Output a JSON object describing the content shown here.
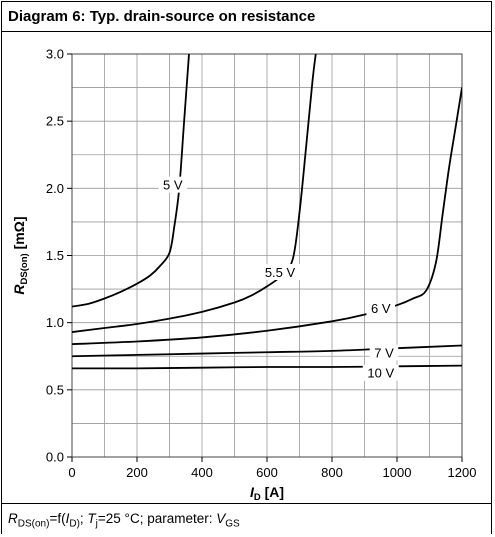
{
  "chart_data": {
    "type": "line",
    "title": "Diagram 6: Typ. drain-source on resistance",
    "xlabel": {
      "symbol": "I",
      "subscript": "D",
      "unit": "[A]"
    },
    "ylabel": {
      "symbol": "R",
      "subscript": "DS(on)",
      "unit": "[mΩ]"
    },
    "caption": "R_DS(on)=f(I_D); T_j=25 °C; parameter: V_GS",
    "xlim": [
      0,
      1200
    ],
    "ylim": [
      0.0,
      3.0
    ],
    "xticks": [
      "0",
      "200",
      "400",
      "600",
      "800",
      "1000",
      "1200"
    ],
    "yticks": [
      "0.0",
      "0.5",
      "1.0",
      "1.5",
      "2.0",
      "2.5",
      "3.0"
    ],
    "grid": true,
    "series": [
      {
        "name": "5 V",
        "points": [
          [
            0,
            1.12
          ],
          [
            50,
            1.14
          ],
          [
            100,
            1.18
          ],
          [
            150,
            1.23
          ],
          [
            200,
            1.29
          ],
          [
            240,
            1.35
          ],
          [
            270,
            1.42
          ],
          [
            300,
            1.52
          ],
          [
            315,
            1.72
          ],
          [
            330,
            2.0
          ],
          [
            345,
            2.5
          ],
          [
            360,
            3.0
          ]
        ]
      },
      {
        "name": "5.5 V",
        "points": [
          [
            0,
            0.93
          ],
          [
            100,
            0.96
          ],
          [
            200,
            0.99
          ],
          [
            300,
            1.03
          ],
          [
            400,
            1.08
          ],
          [
            500,
            1.15
          ],
          [
            550,
            1.2
          ],
          [
            600,
            1.27
          ],
          [
            650,
            1.36
          ],
          [
            680,
            1.48
          ],
          [
            700,
            1.82
          ],
          [
            720,
            2.3
          ],
          [
            740,
            2.8
          ],
          [
            750,
            3.0
          ]
        ]
      },
      {
        "name": "6 V",
        "points": [
          [
            0,
            0.84
          ],
          [
            200,
            0.86
          ],
          [
            400,
            0.89
          ],
          [
            600,
            0.94
          ],
          [
            800,
            1.01
          ],
          [
            900,
            1.06
          ],
          [
            1000,
            1.13
          ],
          [
            1050,
            1.18
          ],
          [
            1090,
            1.24
          ],
          [
            1120,
            1.45
          ],
          [
            1140,
            1.8
          ],
          [
            1160,
            2.15
          ],
          [
            1180,
            2.45
          ],
          [
            1200,
            2.75
          ]
        ]
      },
      {
        "name": "7 V",
        "points": [
          [
            0,
            0.75
          ],
          [
            200,
            0.76
          ],
          [
            400,
            0.77
          ],
          [
            600,
            0.78
          ],
          [
            800,
            0.79
          ],
          [
            1000,
            0.81
          ],
          [
            1200,
            0.83
          ]
        ]
      },
      {
        "name": "10 V",
        "points": [
          [
            0,
            0.66
          ],
          [
            200,
            0.66
          ],
          [
            400,
            0.665
          ],
          [
            600,
            0.67
          ],
          [
            800,
            0.67
          ],
          [
            1000,
            0.675
          ],
          [
            1200,
            0.68
          ]
        ]
      }
    ],
    "annotations": [
      {
        "text": "5 V",
        "at": [
          310,
          2.02
        ]
      },
      {
        "text": "5.5 V",
        "at": [
          640,
          1.37
        ]
      },
      {
        "text": "6 V",
        "at": [
          950,
          1.1
        ]
      },
      {
        "text": "7 V",
        "at": [
          960,
          0.77
        ]
      },
      {
        "text": "10 V",
        "at": [
          950,
          0.62
        ]
      }
    ]
  }
}
